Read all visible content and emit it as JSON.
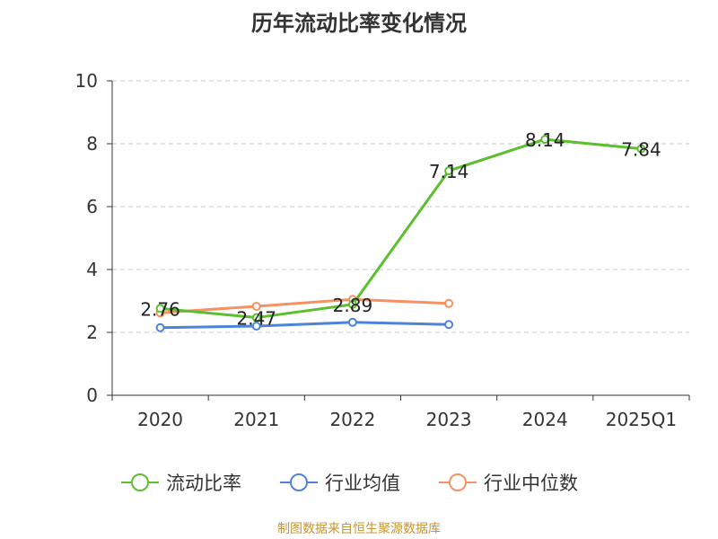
{
  "chart_data": {
    "type": "line",
    "title": "历年流动比率变化情况",
    "categories": [
      "2020",
      "2021",
      "2022",
      "2023",
      "2024",
      "2025Q1"
    ],
    "ylim": [
      0,
      10
    ],
    "yticks": [
      0,
      2,
      4,
      6,
      8,
      10
    ],
    "grid": true,
    "legend_position": "bottom",
    "series": [
      {
        "name": "流动比率",
        "color": "#5bbf2f",
        "values": [
          2.76,
          2.47,
          2.89,
          7.14,
          8.14,
          7.84
        ],
        "labels": [
          "2.76",
          "2.47",
          "2.89",
          "7.14",
          "8.14",
          "7.84"
        ]
      },
      {
        "name": "行业均值",
        "color": "#4f82d9",
        "values": [
          2.15,
          2.2,
          2.32,
          2.25,
          null,
          null
        ]
      },
      {
        "name": "行业中位数",
        "color": "#f59264",
        "values": [
          2.62,
          2.83,
          3.05,
          2.92,
          null,
          null
        ]
      }
    ]
  },
  "source": "制图数据来自恒生聚源数据库"
}
